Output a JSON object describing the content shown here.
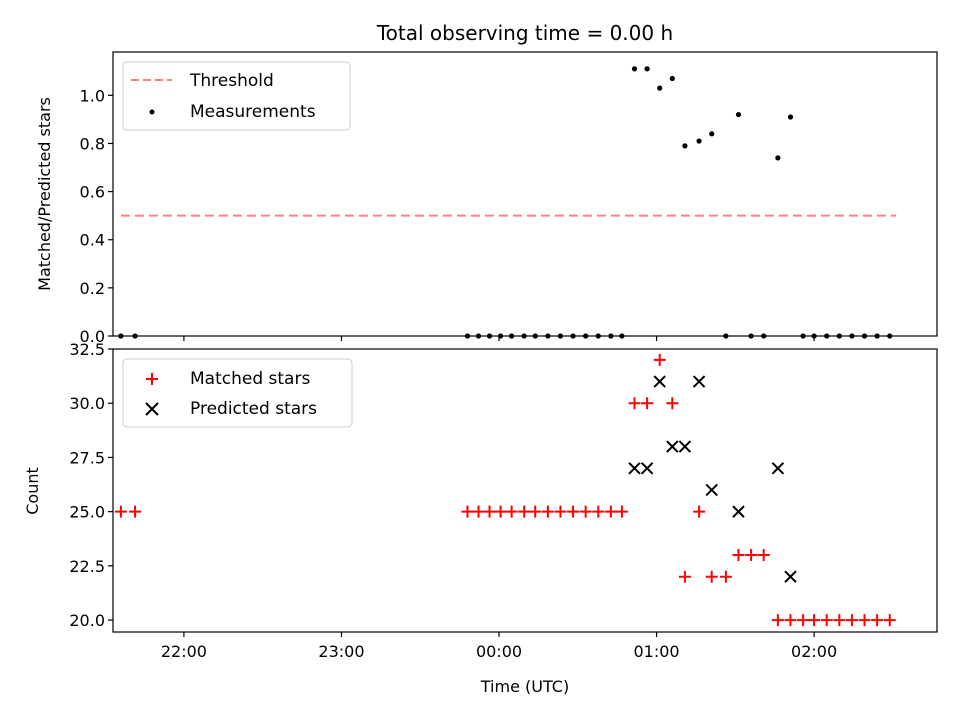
{
  "chart_data": [
    {
      "type": "scatter",
      "title": "Total observing time = 0.00 h",
      "xlabel": "",
      "ylabel": "Matched/Predicted stars",
      "x_unit": "hours UTC",
      "xlim": [
        21.55,
        26.78
      ],
      "ylim": [
        0,
        1.18
      ],
      "yticks": [
        0.0,
        0.2,
        0.4,
        0.6,
        0.8,
        1.0
      ],
      "ytick_labels": [
        "0.0",
        "0.2",
        "0.4",
        "0.6",
        "0.8",
        "1.0"
      ],
      "legend": {
        "position": "top-left",
        "entries": [
          "Threshold",
          "Measurements"
        ]
      },
      "series": [
        {
          "name": "Threshold",
          "kind": "line",
          "style": "dashed",
          "color": "#ff7f7f",
          "points": [
            [
              21.6,
              0.5
            ],
            [
              26.52,
              0.5
            ]
          ]
        },
        {
          "name": "Measurements",
          "kind": "dots",
          "color": "#000000",
          "points": [
            [
              21.6,
              0.0
            ],
            [
              21.69,
              0.0
            ],
            [
              23.8,
              0.0
            ],
            [
              23.87,
              0.0
            ],
            [
              23.94,
              0.0
            ],
            [
              24.01,
              0.0
            ],
            [
              24.08,
              0.0
            ],
            [
              24.16,
              0.0
            ],
            [
              24.23,
              0.0
            ],
            [
              24.31,
              0.0
            ],
            [
              24.39,
              0.0
            ],
            [
              24.47,
              0.0
            ],
            [
              24.55,
              0.0
            ],
            [
              24.63,
              0.0
            ],
            [
              24.71,
              0.0
            ],
            [
              24.78,
              0.0
            ],
            [
              24.86,
              1.11
            ],
            [
              24.94,
              1.11
            ],
            [
              25.02,
              1.03
            ],
            [
              25.1,
              1.07
            ],
            [
              25.18,
              0.79
            ],
            [
              25.27,
              0.81
            ],
            [
              25.35,
              0.84
            ],
            [
              25.44,
              0.0
            ],
            [
              25.52,
              0.92
            ],
            [
              25.6,
              0.0
            ],
            [
              25.68,
              0.0
            ],
            [
              25.77,
              0.74
            ],
            [
              25.85,
              0.91
            ],
            [
              25.93,
              0.0
            ],
            [
              26.0,
              0.0
            ],
            [
              26.08,
              0.0
            ],
            [
              26.16,
              0.0
            ],
            [
              26.24,
              0.0
            ],
            [
              26.32,
              0.0
            ],
            [
              26.4,
              0.0
            ],
            [
              26.48,
              0.0
            ]
          ]
        }
      ]
    },
    {
      "type": "scatter",
      "title": "",
      "xlabel": "Time (UTC)",
      "ylabel": "Count",
      "x_unit": "hours UTC",
      "xlim": [
        21.55,
        26.78
      ],
      "ylim": [
        19.45,
        32.5
      ],
      "yticks": [
        20.0,
        22.5,
        25.0,
        27.5,
        30.0,
        32.5
      ],
      "ytick_labels": [
        "20.0",
        "22.5",
        "25.0",
        "27.5",
        "30.0",
        "32.5"
      ],
      "xticks": [
        22,
        23,
        24,
        25,
        26
      ],
      "xtick_labels": [
        "22:00",
        "23:00",
        "00:00",
        "01:00",
        "02:00"
      ],
      "legend": {
        "position": "top-left",
        "entries": [
          "Matched stars",
          "Predicted stars"
        ]
      },
      "series": [
        {
          "name": "Matched stars",
          "kind": "plus",
          "color": "#ff0000",
          "points": [
            [
              21.6,
              25
            ],
            [
              21.69,
              25
            ],
            [
              23.8,
              25
            ],
            [
              23.87,
              25
            ],
            [
              23.94,
              25
            ],
            [
              24.01,
              25
            ],
            [
              24.08,
              25
            ],
            [
              24.16,
              25
            ],
            [
              24.23,
              25
            ],
            [
              24.31,
              25
            ],
            [
              24.39,
              25
            ],
            [
              24.47,
              25
            ],
            [
              24.55,
              25
            ],
            [
              24.63,
              25
            ],
            [
              24.71,
              25
            ],
            [
              24.78,
              25
            ],
            [
              24.86,
              30
            ],
            [
              24.94,
              30
            ],
            [
              25.02,
              32
            ],
            [
              25.1,
              30
            ],
            [
              25.18,
              22
            ],
            [
              25.27,
              25
            ],
            [
              25.35,
              22
            ],
            [
              25.44,
              22
            ],
            [
              25.52,
              23
            ],
            [
              25.6,
              23
            ],
            [
              25.68,
              23
            ],
            [
              25.77,
              20
            ],
            [
              25.85,
              20
            ],
            [
              25.93,
              20
            ],
            [
              26.0,
              20
            ],
            [
              26.08,
              20
            ],
            [
              26.16,
              20
            ],
            [
              26.24,
              20
            ],
            [
              26.32,
              20
            ],
            [
              26.4,
              20
            ],
            [
              26.48,
              20
            ]
          ]
        },
        {
          "name": "Predicted stars",
          "kind": "cross",
          "color": "#000000",
          "points": [
            [
              24.86,
              27
            ],
            [
              24.94,
              27
            ],
            [
              25.02,
              31
            ],
            [
              25.1,
              28
            ],
            [
              25.18,
              28
            ],
            [
              25.27,
              31
            ],
            [
              25.35,
              26
            ],
            [
              25.52,
              25
            ],
            [
              25.77,
              27
            ],
            [
              25.85,
              22
            ]
          ]
        }
      ]
    }
  ]
}
